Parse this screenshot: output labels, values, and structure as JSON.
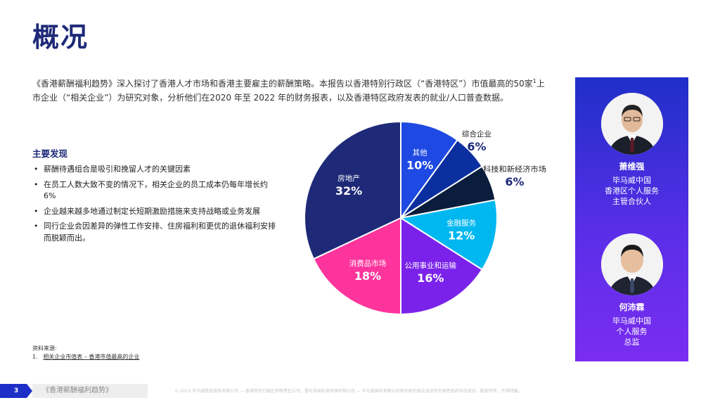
{
  "page": {
    "title": "概况",
    "intro_part1": "《香港薪酬福利趋势》深入探讨了香港人才市场和香港主要雇主的薪酬策略。本报告以香港特别行政区（“香港特区”）市值最高的50家",
    "intro_sup": "1",
    "intro_part2": "上市企业（“相关企业”）为研究对象，分析他们在2020 年至 2022 年的财务报表，以及香港特区政府发表的就业/人口普查数据。"
  },
  "findings": {
    "title": "主要发现",
    "items": [
      "薪酬待遇组合是吸引和挽留人才的关键因素",
      "在员工人数大致不变的情况下，相关企业的员工成本仍每年增长约6%",
      "企业越来越多地通过制定长短期激励措施来支持战略或业务发展",
      "同行企业会因差异的弹性工作安排、住房福利和更优的退休福利安排而脱颖而出。"
    ]
  },
  "chart_data": {
    "type": "pie",
    "title": "",
    "start_angle_deg": 0,
    "direction": "clockwise",
    "slices": [
      {
        "label": "其他",
        "value": 10,
        "display": "10%",
        "color": "#1e49e2"
      },
      {
        "label": "综合企业",
        "value": 6,
        "display": "6%",
        "color": "#0c2fa0"
      },
      {
        "label": "科技和新经济市场",
        "value": 6,
        "display": "6%",
        "color": "#0b1d3d"
      },
      {
        "label": "金融服务",
        "value": 12,
        "display": "12%",
        "color": "#00b7f0"
      },
      {
        "label": "公用事业和运输",
        "value": 16,
        "display": "16%",
        "color": "#7a22ea"
      },
      {
        "label": "消费品市场",
        "value": 18,
        "display": "18%",
        "color": "#fd349c"
      },
      {
        "label": "房地产",
        "value": 32,
        "display": "32%",
        "color": "#1e2a78"
      }
    ]
  },
  "source": {
    "title": "资料来源:",
    "items": [
      {
        "num": "1.",
        "text": "相关企业市值表 – 香港市值最高的企业"
      }
    ]
  },
  "people": [
    {
      "name": "萧维强",
      "role_lines": [
        "毕马威中国",
        "香港区个人服务",
        "主管合伙人"
      ]
    },
    {
      "name": "何沛霖",
      "role_lines": [
        "毕马威中国",
        "个人服务",
        "总监"
      ]
    }
  ],
  "footer": {
    "page_number": "3",
    "report_name": "《香港薪酬福利趋势》",
    "copyright": "© 2023 毕马威税务服务有限公司 — 香港特别行政区有限责任公司，暨与英国私营担保有限公司 — 毕马威国际有限公司相关联的独立成员所全球性组织中的成员。版权所有，不得转载。"
  }
}
